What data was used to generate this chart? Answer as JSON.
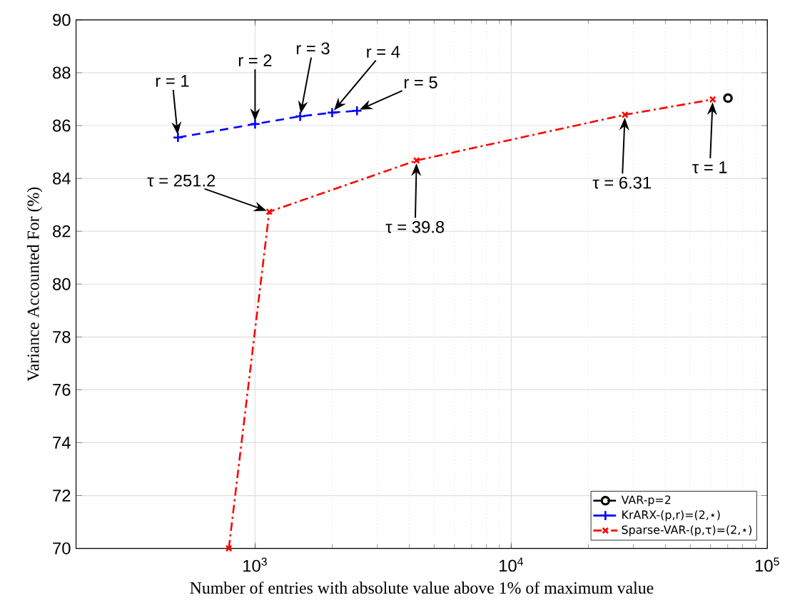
{
  "chart_data": {
    "type": "line",
    "xlabel": "Number of entries with absolute value above 1% of maximum value",
    "ylabel": "Variance Accounted For (%)",
    "log": "x",
    "xlim": [
      200,
      100000
    ],
    "ylim": [
      70,
      90
    ],
    "xticks": [
      {
        "value": 1000,
        "label": "10$^{3}$"
      },
      {
        "value": 10000,
        "label": "10$^{4}$"
      },
      {
        "value": 100000,
        "label": "10$^{5}$"
      }
    ],
    "yticks": [
      70,
      72,
      74,
      76,
      78,
      80,
      82,
      84,
      86,
      88,
      90
    ],
    "grid": true,
    "legend": "bottom right",
    "series": [
      {
        "name": "VAR-p=2",
        "color": "#000000",
        "marker": "circle",
        "line_style": "dashed",
        "x": [
          70200
        ],
        "values": [
          87.04
        ]
      },
      {
        "name": "KrARX-(p,r)=(2,⋆)",
        "color": "#0000ff",
        "marker": "plus",
        "line_style": "dashed",
        "x": [
          500,
          1000,
          1500,
          2000,
          2500
        ],
        "values": [
          85.55,
          86.06,
          86.35,
          86.49,
          86.56
        ]
      },
      {
        "name": "Sparse-VAR-(p,τ)=(2,⋆)",
        "color": "#ff0000",
        "marker": "cross",
        "line_style": "dashdot",
        "x": [
          790,
          1136,
          4270,
          27800,
          61200
        ],
        "values": [
          70,
          82.74,
          84.68,
          86.41,
          86.99
        ]
      }
    ],
    "annotations": [
      {
        "text": "r = 1",
        "x": 500,
        "y": 85.55
      },
      {
        "text": "r = 2",
        "x": 1000,
        "y": 86.06
      },
      {
        "text": "r = 3",
        "x": 1500,
        "y": 86.35
      },
      {
        "text": "r = 4",
        "x": 2000,
        "y": 86.49
      },
      {
        "text": "r = 5",
        "x": 2500,
        "y": 86.56
      },
      {
        "text": "τ = 1",
        "x": 61200,
        "y": 86.99
      },
      {
        "text": "τ = 6.31",
        "x": 27800,
        "y": 86.41
      },
      {
        "text": "τ = 39.8",
        "x": 4270,
        "y": 84.68
      },
      {
        "text": "τ = 251.2",
        "x": 1136,
        "y": 82.74
      }
    ]
  }
}
